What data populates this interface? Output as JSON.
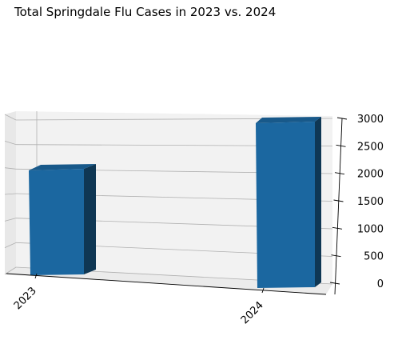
{
  "chart_data": {
    "type": "bar",
    "title": "Total Springdale Flu Cases in 2023 vs. 2024",
    "categories": [
      "2023",
      "2024"
    ],
    "values": [
      1800,
      3000
    ],
    "zlim": [
      0,
      3000
    ],
    "zticks": [
      "0",
      "500",
      "1000",
      "1500",
      "2000",
      "2500",
      "3000"
    ],
    "grid": true,
    "bar_color": "#1b67a0",
    "bar_top_color": "#18598a",
    "bar_side_color": "#0f3754"
  }
}
